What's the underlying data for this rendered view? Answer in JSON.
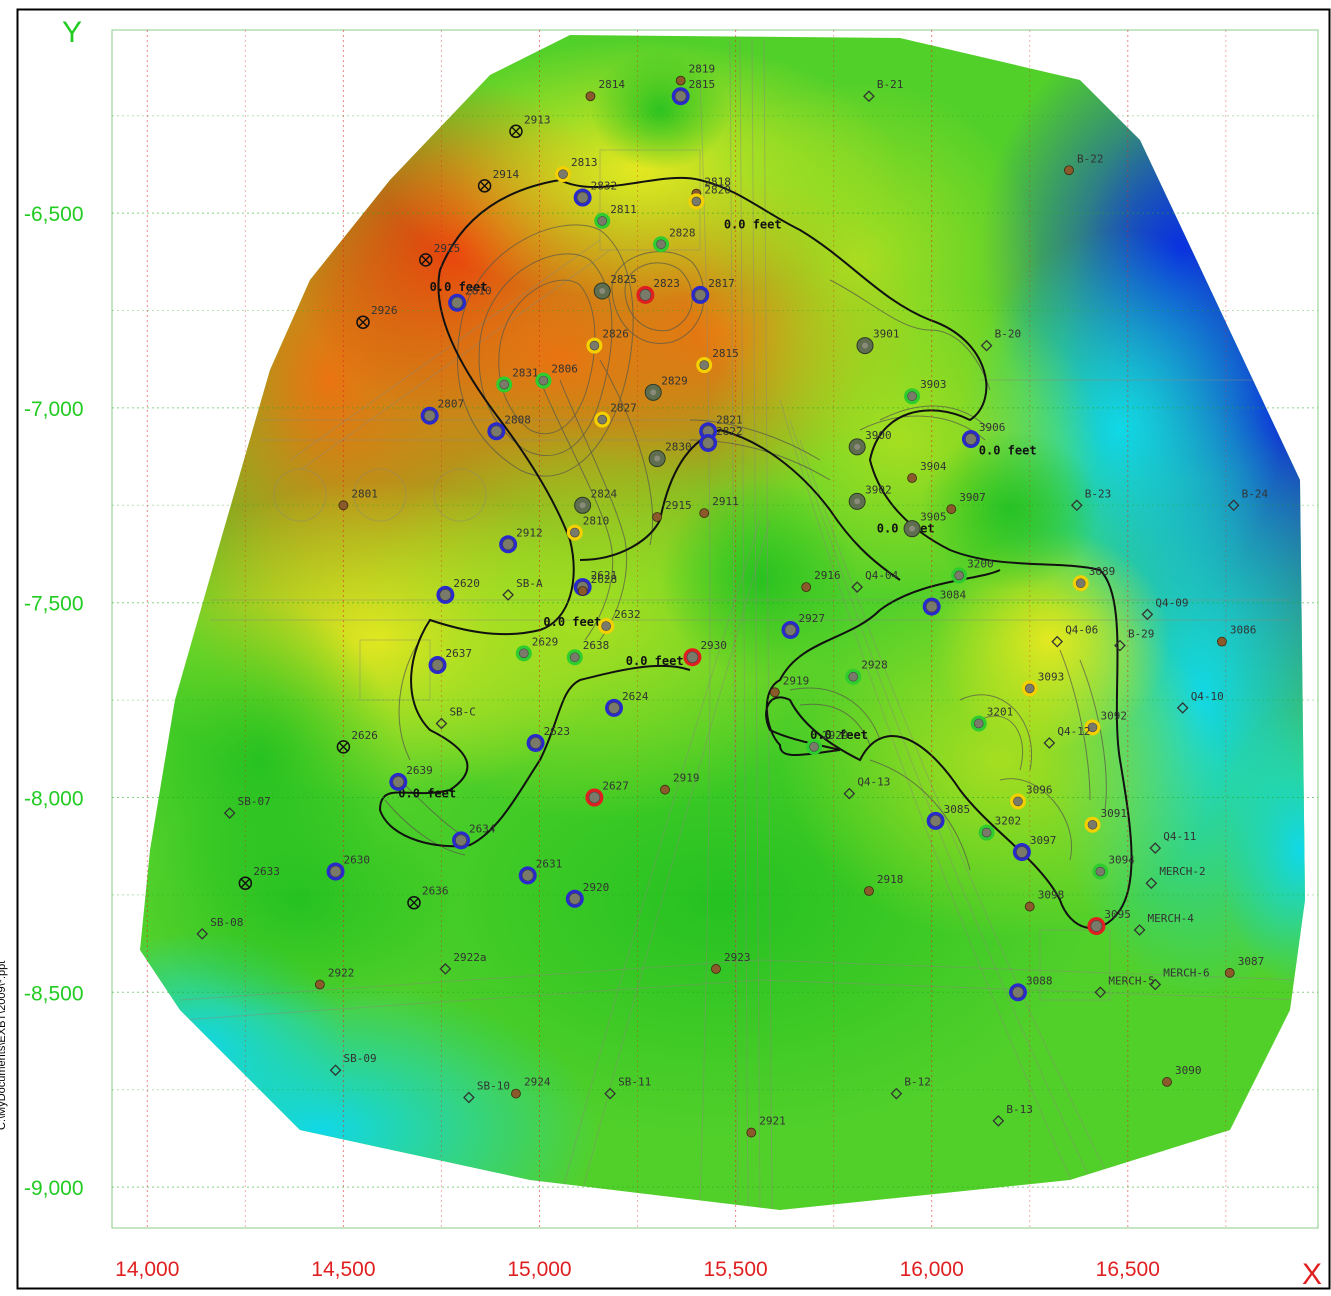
{
  "axes": {
    "x_title": "X",
    "y_title": "Y",
    "x_ticks": [
      14000,
      14500,
      15000,
      15500,
      16000,
      16500
    ],
    "x_tick_labels": [
      "14,000",
      "14,500",
      "15,000",
      "15,500",
      "16,000",
      "16,500"
    ],
    "y_ticks": [
      -6500,
      -7000,
      -7500,
      -8000,
      -8500,
      -9000
    ],
    "y_tick_labels": [
      "-6,500",
      "-7,000",
      "-7,500",
      "-8,000",
      "-8,500",
      "-9,000"
    ],
    "x_range": [
      13910,
      16985
    ],
    "y_range": [
      -9105,
      -6030
    ],
    "x_title_color": "#e02020",
    "y_title_color": "#22cc22",
    "x_tick_color": "#e02020",
    "y_tick_color": "#22cc22"
  },
  "side_label": "C:\\MyDocuments\\EXBT\\2009\\*.ppt",
  "legend_colors": {
    "blue_ring": "#2a2acc",
    "red_ring": "#e02020",
    "yellow_ring": "#f5d000",
    "green_ring": "#2ecc2e",
    "grey_well": "#7a7a6a",
    "small_brown": "#8b5a2b",
    "diamond": "#333333"
  },
  "contour_labels": [
    {
      "text": "0.0 feet",
      "x": 15470,
      "y": -6540
    },
    {
      "text": "0.0 feet",
      "x": 14720,
      "y": -6700
    },
    {
      "text": "0.0 feet",
      "x": 15010,
      "y": -7560
    },
    {
      "text": "0.0 feet",
      "x": 15220,
      "y": -7660
    },
    {
      "text": "0.0 feet",
      "x": 14640,
      "y": -8000
    },
    {
      "text": "0.0 feet",
      "x": 16120,
      "y": -7120
    },
    {
      "text": "0.0 feet",
      "x": 15690,
      "y": -7850
    },
    {
      "text": "0.0 feet",
      "x": 15860,
      "y": -7320
    }
  ],
  "wells": [
    {
      "id": "2814",
      "x": 15130,
      "y": -6200,
      "type": "small"
    },
    {
      "id": "2819",
      "x": 15360,
      "y": -6160,
      "type": "small"
    },
    {
      "id": "2815",
      "x": 15360,
      "y": -6200,
      "type": "blue"
    },
    {
      "id": "B-21",
      "x": 15840,
      "y": -6200,
      "type": "diamond"
    },
    {
      "id": "2913",
      "x": 14940,
      "y": -6290,
      "type": "cross"
    },
    {
      "id": "2813",
      "x": 15060,
      "y": -6400,
      "type": "yellow"
    },
    {
      "id": "2914",
      "x": 14860,
      "y": -6430,
      "type": "cross"
    },
    {
      "id": "2832",
      "x": 15110,
      "y": -6460,
      "type": "blue"
    },
    {
      "id": "2818",
      "x": 15400,
      "y": -6450,
      "type": "small"
    },
    {
      "id": "2820",
      "x": 15400,
      "y": -6470,
      "type": "yellow"
    },
    {
      "id": "B-22",
      "x": 16350,
      "y": -6390,
      "type": "small"
    },
    {
      "id": "2811",
      "x": 15160,
      "y": -6520,
      "type": "green"
    },
    {
      "id": "2828",
      "x": 15310,
      "y": -6580,
      "type": "green"
    },
    {
      "id": "2925",
      "x": 14710,
      "y": -6620,
      "type": "cross"
    },
    {
      "id": "2825",
      "x": 15160,
      "y": -6700,
      "type": "grey"
    },
    {
      "id": "2823",
      "x": 15270,
      "y": -6710,
      "type": "red"
    },
    {
      "id": "2817",
      "x": 15410,
      "y": -6710,
      "type": "blue"
    },
    {
      "id": "2810",
      "x": 14790,
      "y": -6730,
      "type": "blue"
    },
    {
      "id": "2926",
      "x": 14550,
      "y": -6780,
      "type": "cross"
    },
    {
      "id": "2826",
      "x": 15140,
      "y": -6840,
      "type": "yellow"
    },
    {
      "id": "3901",
      "x": 15830,
      "y": -6840,
      "type": "grey"
    },
    {
      "id": "B-20",
      "x": 16140,
      "y": -6840,
      "type": "diamond"
    },
    {
      "id": "2815",
      "x": 15420,
      "y": -6890,
      "type": "yellow"
    },
    {
      "id": "2831",
      "x": 14910,
      "y": -6940,
      "type": "green"
    },
    {
      "id": "2806",
      "x": 15010,
      "y": -6930,
      "type": "green"
    },
    {
      "id": "2829",
      "x": 15290,
      "y": -6960,
      "type": "grey"
    },
    {
      "id": "3903",
      "x": 15950,
      "y": -6970,
      "type": "green"
    },
    {
      "id": "2807",
      "x": 14720,
      "y": -7020,
      "type": "blue"
    },
    {
      "id": "2808",
      "x": 14890,
      "y": -7060,
      "type": "blue"
    },
    {
      "id": "2827",
      "x": 15160,
      "y": -7030,
      "type": "yellow"
    },
    {
      "id": "2821",
      "x": 15430,
      "y": -7060,
      "type": "blue"
    },
    {
      "id": "2822",
      "x": 15430,
      "y": -7090,
      "type": "blue"
    },
    {
      "id": "3900",
      "x": 15810,
      "y": -7100,
      "type": "grey"
    },
    {
      "id": "3906",
      "x": 16100,
      "y": -7080,
      "type": "blue"
    },
    {
      "id": "2830",
      "x": 15300,
      "y": -7130,
      "type": "grey"
    },
    {
      "id": "3904",
      "x": 15950,
      "y": -7180,
      "type": "small"
    },
    {
      "id": "2801",
      "x": 14500,
      "y": -7250,
      "type": "small"
    },
    {
      "id": "2824",
      "x": 15110,
      "y": -7250,
      "type": "grey"
    },
    {
      "id": "2915",
      "x": 15300,
      "y": -7280,
      "type": "small"
    },
    {
      "id": "2911",
      "x": 15420,
      "y": -7270,
      "type": "small"
    },
    {
      "id": "3902",
      "x": 15810,
      "y": -7240,
      "type": "grey"
    },
    {
      "id": "3907",
      "x": 16050,
      "y": -7260,
      "type": "small"
    },
    {
      "id": "B-23",
      "x": 16370,
      "y": -7250,
      "type": "diamond"
    },
    {
      "id": "B-24",
      "x": 16770,
      "y": -7250,
      "type": "diamond"
    },
    {
      "id": "2810",
      "x": 15090,
      "y": -7320,
      "type": "yellow"
    },
    {
      "id": "3905",
      "x": 15950,
      "y": -7310,
      "type": "grey"
    },
    {
      "id": "2912",
      "x": 14920,
      "y": -7350,
      "type": "blue"
    },
    {
      "id": "3200",
      "x": 16070,
      "y": -7430,
      "type": "green"
    },
    {
      "id": "3089",
      "x": 16380,
      "y": -7450,
      "type": "yellow"
    },
    {
      "id": "2916",
      "x": 15680,
      "y": -7460,
      "type": "small"
    },
    {
      "id": "Q4-04",
      "x": 15810,
      "y": -7460,
      "type": "diamond"
    },
    {
      "id": "2620",
      "x": 14760,
      "y": -7480,
      "type": "blue"
    },
    {
      "id": "SB-A",
      "x": 14920,
      "y": -7480,
      "type": "diamond"
    },
    {
      "id": "2621",
      "x": 15110,
      "y": -7460,
      "type": "blue"
    },
    {
      "id": "2628",
      "x": 15110,
      "y": -7470,
      "type": "small"
    },
    {
      "id": "3084",
      "x": 16000,
      "y": -7510,
      "type": "blue"
    },
    {
      "id": "Q4-09",
      "x": 16550,
      "y": -7530,
      "type": "diamond"
    },
    {
      "id": "2632",
      "x": 15170,
      "y": -7560,
      "type": "yellow"
    },
    {
      "id": "2927",
      "x": 15640,
      "y": -7570,
      "type": "blue"
    },
    {
      "id": "Q4-06",
      "x": 16320,
      "y": -7600,
      "type": "diamond"
    },
    {
      "id": "B-29",
      "x": 16480,
      "y": -7610,
      "type": "diamond"
    },
    {
      "id": "3086",
      "x": 16740,
      "y": -7600,
      "type": "small"
    },
    {
      "id": "2629",
      "x": 14960,
      "y": -7630,
      "type": "green"
    },
    {
      "id": "2638",
      "x": 15090,
      "y": -7640,
      "type": "green"
    },
    {
      "id": "2930",
      "x": 15390,
      "y": -7640,
      "type": "red"
    },
    {
      "id": "2637",
      "x": 14740,
      "y": -7660,
      "type": "blue"
    },
    {
      "id": "2928",
      "x": 15800,
      "y": -7690,
      "type": "green"
    },
    {
      "id": "3093",
      "x": 16250,
      "y": -7720,
      "type": "yellow"
    },
    {
      "id": "2919",
      "x": 15600,
      "y": -7730,
      "type": "small"
    },
    {
      "id": "Q4-10",
      "x": 16640,
      "y": -7770,
      "type": "diamond"
    },
    {
      "id": "2624",
      "x": 15190,
      "y": -7770,
      "type": "blue"
    },
    {
      "id": "SB-C",
      "x": 14750,
      "y": -7810,
      "type": "diamond"
    },
    {
      "id": "3201",
      "x": 16120,
      "y": -7810,
      "type": "green"
    },
    {
      "id": "3092",
      "x": 16410,
      "y": -7820,
      "type": "yellow"
    },
    {
      "id": "Q4-12",
      "x": 16300,
      "y": -7860,
      "type": "diamond"
    },
    {
      "id": "2623",
      "x": 14990,
      "y": -7860,
      "type": "blue"
    },
    {
      "id": "2626",
      "x": 14500,
      "y": -7870,
      "type": "cross"
    },
    {
      "id": "2929",
      "x": 15700,
      "y": -7870,
      "type": "green"
    },
    {
      "id": "2639",
      "x": 14640,
      "y": -7960,
      "type": "blue"
    },
    {
      "id": "Q4-13",
      "x": 15790,
      "y": -7990,
      "type": "diamond"
    },
    {
      "id": "3096",
      "x": 16220,
      "y": -8010,
      "type": "yellow"
    },
    {
      "id": "2627",
      "x": 15140,
      "y": -8000,
      "type": "red"
    },
    {
      "id": "2919",
      "x": 15320,
      "y": -7980,
      "type": "small"
    },
    {
      "id": "SB-07",
      "x": 14210,
      "y": -8040,
      "type": "diamond"
    },
    {
      "id": "3085",
      "x": 16010,
      "y": -8060,
      "type": "blue"
    },
    {
      "id": "3091",
      "x": 16410,
      "y": -8070,
      "type": "yellow"
    },
    {
      "id": "3202",
      "x": 16140,
      "y": -8090,
      "type": "green"
    },
    {
      "id": "2634",
      "x": 14800,
      "y": -8110,
      "type": "blue"
    },
    {
      "id": "3097",
      "x": 16230,
      "y": -8140,
      "type": "blue"
    },
    {
      "id": "Q4-11",
      "x": 16570,
      "y": -8130,
      "type": "diamond"
    },
    {
      "id": "2630",
      "x": 14480,
      "y": -8190,
      "type": "blue"
    },
    {
      "id": "2631",
      "x": 14970,
      "y": -8200,
      "type": "blue"
    },
    {
      "id": "3094",
      "x": 16430,
      "y": -8190,
      "type": "green"
    },
    {
      "id": "MERCH-2",
      "x": 16560,
      "y": -8220,
      "type": "diamond"
    },
    {
      "id": "2633",
      "x": 14250,
      "y": -8220,
      "type": "cross"
    },
    {
      "id": "2918",
      "x": 15840,
      "y": -8240,
      "type": "small"
    },
    {
      "id": "2920",
      "x": 15090,
      "y": -8260,
      "type": "blue"
    },
    {
      "id": "2636",
      "x": 14680,
      "y": -8270,
      "type": "cross"
    },
    {
      "id": "3098",
      "x": 16250,
      "y": -8280,
      "type": "small"
    },
    {
      "id": "SB-08",
      "x": 14140,
      "y": -8350,
      "type": "diamond"
    },
    {
      "id": "3095",
      "x": 16420,
      "y": -8330,
      "type": "red"
    },
    {
      "id": "MERCH-4",
      "x": 16530,
      "y": -8340,
      "type": "diamond"
    },
    {
      "id": "2922a",
      "x": 14760,
      "y": -8440,
      "type": "diamond"
    },
    {
      "id": "2923",
      "x": 15450,
      "y": -8440,
      "type": "small"
    },
    {
      "id": "3087",
      "x": 16760,
      "y": -8450,
      "type": "small"
    },
    {
      "id": "2922",
      "x": 14440,
      "y": -8480,
      "type": "small"
    },
    {
      "id": "MERCH-6",
      "x": 16570,
      "y": -8480,
      "type": "diamond"
    },
    {
      "id": "3088",
      "x": 16220,
      "y": -8500,
      "type": "blue"
    },
    {
      "id": "MERCH-5",
      "x": 16430,
      "y": -8500,
      "type": "diamond"
    },
    {
      "id": "SB-09",
      "x": 14480,
      "y": -8700,
      "type": "diamond"
    },
    {
      "id": "3090",
      "x": 16600,
      "y": -8730,
      "type": "small"
    },
    {
      "id": "SB-10",
      "x": 14820,
      "y": -8770,
      "type": "diamond"
    },
    {
      "id": "2924",
      "x": 14940,
      "y": -8760,
      "type": "small"
    },
    {
      "id": "SB-11",
      "x": 15180,
      "y": -8760,
      "type": "diamond"
    },
    {
      "id": "B-12",
      "x": 15910,
      "y": -8760,
      "type": "diamond"
    },
    {
      "id": "B-13",
      "x": 16170,
      "y": -8830,
      "type": "diamond"
    },
    {
      "id": "2921",
      "x": 15540,
      "y": -8860,
      "type": "small"
    }
  ]
}
